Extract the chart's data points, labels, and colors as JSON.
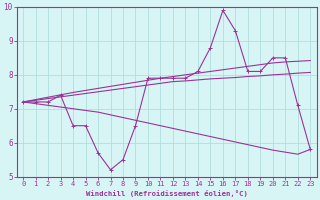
{
  "xlabel": "Windchill (Refroidissement éolien,°C)",
  "background_color": "#d8f5f5",
  "grid_color": "#b0dede",
  "line_color": "#993399",
  "x_data": [
    0,
    1,
    2,
    3,
    4,
    5,
    6,
    7,
    8,
    9,
    10,
    11,
    12,
    13,
    14,
    15,
    16,
    17,
    18,
    19,
    20,
    21,
    22,
    23
  ],
  "y_scatter": [
    7.2,
    7.2,
    7.2,
    7.4,
    6.5,
    6.5,
    5.7,
    5.2,
    5.5,
    6.5,
    7.9,
    7.9,
    7.9,
    7.9,
    8.1,
    8.8,
    9.9,
    9.3,
    8.1,
    8.1,
    8.5,
    8.5,
    7.1,
    5.8
  ],
  "y_line1": [
    7.2,
    7.25,
    7.3,
    7.35,
    7.4,
    7.45,
    7.5,
    7.55,
    7.6,
    7.65,
    7.7,
    7.75,
    7.8,
    7.82,
    7.85,
    7.88,
    7.9,
    7.92,
    7.95,
    7.97,
    8.0,
    8.02,
    8.05,
    8.07
  ],
  "y_line2": [
    7.2,
    7.27,
    7.34,
    7.41,
    7.48,
    7.54,
    7.6,
    7.66,
    7.72,
    7.78,
    7.84,
    7.9,
    7.95,
    8.0,
    8.05,
    8.1,
    8.15,
    8.2,
    8.25,
    8.3,
    8.35,
    8.38,
    8.4,
    8.42
  ],
  "y_line3": [
    7.2,
    7.15,
    7.1,
    7.05,
    7.0,
    6.95,
    6.9,
    6.82,
    6.74,
    6.66,
    6.58,
    6.5,
    6.42,
    6.34,
    6.26,
    6.18,
    6.1,
    6.02,
    5.94,
    5.86,
    5.78,
    5.72,
    5.66,
    5.8
  ],
  "xlim": [
    -0.5,
    23.5
  ],
  "ylim": [
    5.0,
    10.0
  ],
  "yticks": [
    5,
    6,
    7,
    8,
    9,
    10
  ],
  "xticks": [
    0,
    1,
    2,
    3,
    4,
    5,
    6,
    7,
    8,
    9,
    10,
    11,
    12,
    13,
    14,
    15,
    16,
    17,
    18,
    19,
    20,
    21,
    22,
    23
  ]
}
